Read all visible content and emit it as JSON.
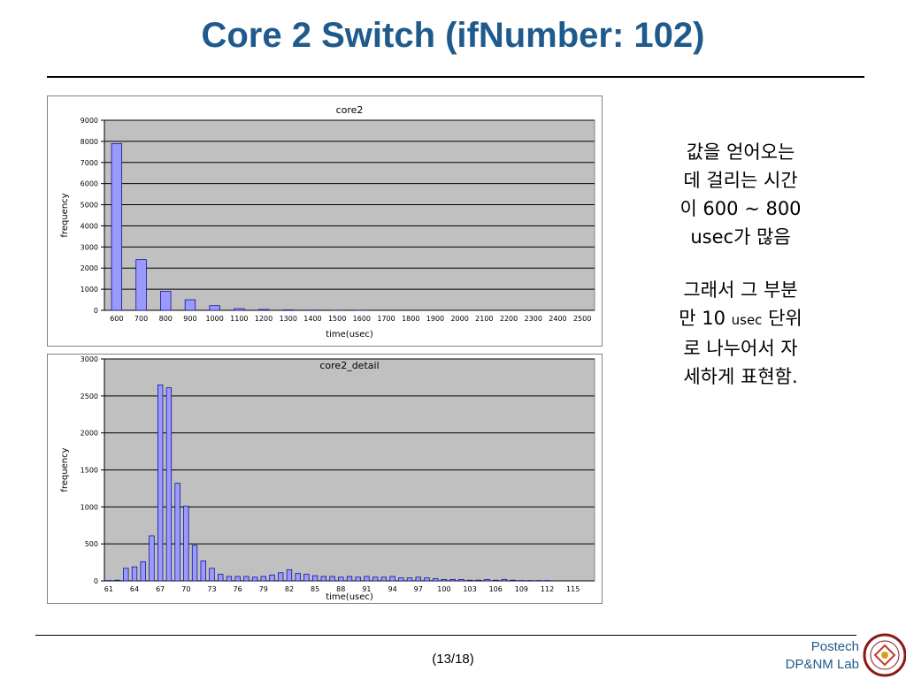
{
  "slide": {
    "title": "Core 2 Switch (ifNumber: 102)",
    "page": "(13/18)",
    "footer_line1": "Postech",
    "footer_line2": "DP&NM Lab"
  },
  "notes": {
    "p1_l1": "값을 얻어오는",
    "p1_l2": "데 걸리는 시간",
    "p1_l3": "이 600 ~ 800",
    "p1_l4": "usec가 많음",
    "p2_l1": "그래서 그 부분",
    "p2_l2a": "만 10 ",
    "p2_l2b": "usec",
    "p2_l2c": " 단위",
    "p2_l3": "로 나누어서 자",
    "p2_l4": "세하게 표현함."
  },
  "colors": {
    "title": "#1f5a8c",
    "plot_bg": "#c0c0c0",
    "bar_fill": "#9999ff",
    "bar_stroke": "#000080"
  },
  "chart_data": [
    {
      "type": "bar",
      "title": "core2",
      "xlabel": "time(usec)",
      "ylabel": "frequency",
      "ylim": [
        0,
        9000
      ],
      "yticks": [
        0,
        1000,
        2000,
        3000,
        4000,
        5000,
        6000,
        7000,
        8000,
        9000
      ],
      "grid": true,
      "categories": [
        "600",
        "700",
        "800",
        "900",
        "1000",
        "1100",
        "1200",
        "1300",
        "1400",
        "1500",
        "1600",
        "1700",
        "1800",
        "1900",
        "2000",
        "2100",
        "2200",
        "2300",
        "2400",
        "2500"
      ],
      "values": [
        7900,
        2400,
        900,
        500,
        220,
        80,
        40,
        20,
        10,
        5,
        5,
        0,
        0,
        0,
        0,
        0,
        0,
        0,
        0,
        0
      ]
    },
    {
      "type": "bar",
      "title": "core2_detail",
      "xlabel": "time(usec)",
      "ylabel": "frequency",
      "ylim": [
        0,
        3000
      ],
      "yticks": [
        0,
        500,
        1000,
        1500,
        2000,
        2500,
        3000
      ],
      "grid": true,
      "xtick_labels": [
        "61",
        "64",
        "67",
        "70",
        "73",
        "76",
        "79",
        "82",
        "85",
        "88",
        "91",
        "94",
        "97",
        "100",
        "103",
        "106",
        "109",
        "112",
        "115"
      ],
      "categories": [
        "61",
        "62",
        "63",
        "64",
        "65",
        "66",
        "67",
        "68",
        "69",
        "70",
        "71",
        "72",
        "73",
        "74",
        "75",
        "76",
        "77",
        "78",
        "79",
        "80",
        "81",
        "82",
        "83",
        "84",
        "85",
        "86",
        "87",
        "88",
        "89",
        "90",
        "91",
        "92",
        "93",
        "94",
        "95",
        "96",
        "97",
        "98",
        "99",
        "100",
        "101",
        "102",
        "103",
        "104",
        "105",
        "106",
        "107",
        "108",
        "109",
        "110",
        "111",
        "112",
        "113",
        "114",
        "115",
        "116",
        "117"
      ],
      "values": [
        5,
        10,
        170,
        190,
        260,
        610,
        2650,
        2610,
        1320,
        1010,
        480,
        270,
        170,
        90,
        60,
        60,
        60,
        50,
        60,
        80,
        110,
        150,
        100,
        90,
        70,
        60,
        60,
        50,
        60,
        50,
        60,
        50,
        50,
        60,
        40,
        40,
        50,
        40,
        30,
        20,
        20,
        20,
        10,
        10,
        20,
        10,
        20,
        10,
        5,
        5,
        5,
        5,
        0,
        0,
        0,
        0,
        0
      ]
    }
  ]
}
